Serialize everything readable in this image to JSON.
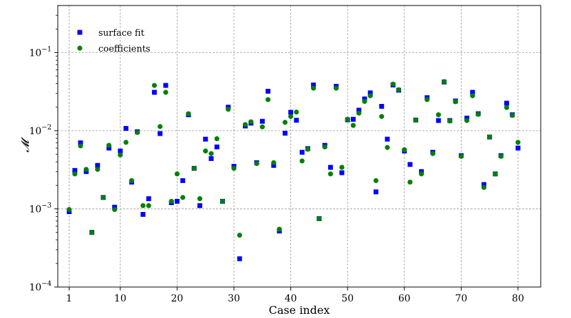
{
  "chart_data": {
    "type": "scatter",
    "xlabel": "Case index",
    "ylabel": "𝓜",
    "yscale": "log",
    "xlim": [
      -1,
      84
    ],
    "ylim": [
      0.0001,
      0.4
    ],
    "grid": true,
    "legend_position": "top-left",
    "x_ticks": [
      1,
      10,
      20,
      30,
      40,
      50,
      60,
      70,
      80
    ],
    "y_ticks": [
      {
        "value": 0.0001,
        "base": "10",
        "exp": "−4"
      },
      {
        "value": 0.001,
        "base": "10",
        "exp": "−3"
      },
      {
        "value": 0.01,
        "base": "10",
        "exp": "−2"
      },
      {
        "value": 0.1,
        "base": "10",
        "exp": "−1"
      }
    ],
    "series": [
      {
        "name": "surface fit",
        "marker": "square",
        "color": "#0000ff",
        "x": [
          1,
          2,
          3,
          4,
          5,
          6,
          7,
          8,
          9,
          10,
          11,
          12,
          13,
          14,
          15,
          16,
          17,
          18,
          19,
          20,
          21,
          22,
          23,
          24,
          25,
          26,
          27,
          28,
          29,
          30,
          31,
          32,
          33,
          34,
          35,
          36,
          37,
          38,
          39,
          40,
          41,
          42,
          43,
          44,
          45,
          46,
          47,
          48,
          49,
          50,
          51,
          52,
          53,
          54,
          55,
          56,
          57,
          58,
          59,
          60,
          61,
          62,
          63,
          64,
          65,
          66,
          67,
          68,
          69,
          70,
          71,
          72,
          73,
          74,
          75,
          76,
          77,
          78,
          79,
          80
        ],
        "y": [
          0.00092,
          0.0031,
          0.007,
          0.003,
          0.0005,
          0.0036,
          0.0014,
          0.006,
          0.00105,
          0.0055,
          0.0107,
          0.0022,
          0.0097,
          0.00085,
          0.00135,
          0.031,
          0.0092,
          0.038,
          0.0012,
          0.00125,
          0.0023,
          0.016,
          0.0033,
          0.0011,
          0.0078,
          0.0044,
          0.0062,
          0.00125,
          0.02,
          0.0035,
          0.00023,
          0.0115,
          0.0125,
          0.0039,
          0.0132,
          0.032,
          0.0036,
          0.00052,
          0.0093,
          0.0172,
          0.0136,
          0.0053,
          0.0059,
          0.0385,
          0.00075,
          0.0065,
          0.0034,
          0.037,
          0.0029,
          0.0138,
          0.014,
          0.0183,
          0.0255,
          0.0305,
          0.00165,
          0.0205,
          0.0078,
          0.0385,
          0.033,
          0.0055,
          0.0037,
          0.0137,
          0.003,
          0.0265,
          0.0053,
          0.0135,
          0.042,
          0.0135,
          0.024,
          0.0048,
          0.0145,
          0.031,
          0.0165,
          0.00205,
          0.0083,
          0.0028,
          0.0048,
          0.0225,
          0.016,
          0.006
        ]
      },
      {
        "name": "coefficients",
        "marker": "circle",
        "color": "#008000",
        "x": [
          1,
          2,
          3,
          4,
          5,
          6,
          7,
          8,
          9,
          10,
          11,
          12,
          13,
          14,
          15,
          16,
          17,
          18,
          19,
          20,
          21,
          22,
          23,
          24,
          25,
          26,
          27,
          28,
          29,
          30,
          31,
          32,
          33,
          34,
          35,
          36,
          37,
          38,
          39,
          40,
          41,
          42,
          43,
          44,
          45,
          46,
          47,
          48,
          49,
          50,
          51,
          52,
          53,
          54,
          55,
          56,
          57,
          58,
          59,
          60,
          61,
          62,
          63,
          64,
          65,
          66,
          67,
          68,
          69,
          70,
          71,
          72,
          73,
          74,
          75,
          76,
          77,
          78,
          79,
          80
        ],
        "y": [
          0.00098,
          0.0028,
          0.0064,
          0.0032,
          0.0005,
          0.0032,
          0.0014,
          0.0065,
          0.00098,
          0.0049,
          0.0071,
          0.0023,
          0.0095,
          0.0011,
          0.0011,
          0.038,
          0.0113,
          0.031,
          0.00125,
          0.0028,
          0.0014,
          0.0165,
          0.0033,
          0.00135,
          0.0055,
          0.0051,
          0.0079,
          0.00125,
          0.0188,
          0.0033,
          0.00046,
          0.012,
          0.013,
          0.0038,
          0.0112,
          0.025,
          0.0039,
          0.00055,
          0.0128,
          0.0152,
          0.0173,
          0.0041,
          0.0058,
          0.035,
          0.00075,
          0.0062,
          0.0028,
          0.035,
          0.0034,
          0.014,
          0.0117,
          0.0168,
          0.0237,
          0.028,
          0.0023,
          0.0152,
          0.0061,
          0.0395,
          0.0335,
          0.0057,
          0.0022,
          0.0137,
          0.0028,
          0.025,
          0.0051,
          0.016,
          0.0425,
          0.0133,
          0.0235,
          0.0047,
          0.0135,
          0.028,
          0.0162,
          0.00188,
          0.0083,
          0.0028,
          0.0047,
          0.0198,
          0.0157,
          0.0071
        ]
      }
    ]
  }
}
